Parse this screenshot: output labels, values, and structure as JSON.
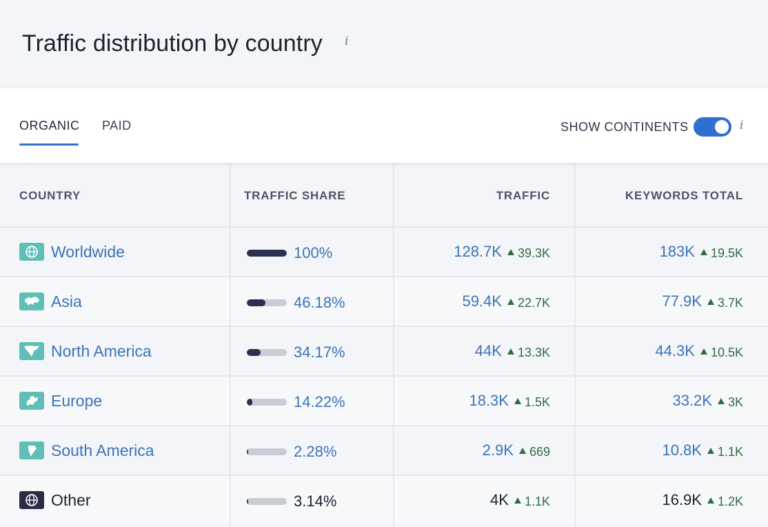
{
  "header": {
    "title": "Traffic distribution by country",
    "info": "i"
  },
  "tabs": {
    "items": [
      {
        "label": "ORGANIC",
        "active": true
      },
      {
        "label": "PAID",
        "active": false
      }
    ],
    "continents_label": "SHOW CONTINENTS",
    "continents_on": true,
    "continents_info": "i"
  },
  "table": {
    "headers": {
      "country": "COUNTRY",
      "share": "TRAFFIC SHARE",
      "traffic": "TRAFFIC",
      "keywords": "KEYWORDS TOTAL"
    },
    "rows": [
      {
        "name": "Worldwide",
        "icon": "globe-icon",
        "share": "100%",
        "share_fraction": 1.0,
        "traffic": "128.7K",
        "traffic_delta": "39.3K",
        "keywords": "183K",
        "keywords_delta": "19.5K",
        "link": true
      },
      {
        "name": "Asia",
        "icon": "asia-map-icon",
        "share": "46.18%",
        "share_fraction": 0.4618,
        "traffic": "59.4K",
        "traffic_delta": "22.7K",
        "keywords": "77.9K",
        "keywords_delta": "3.7K",
        "link": true
      },
      {
        "name": "North America",
        "icon": "north-america-map-icon",
        "share": "34.17%",
        "share_fraction": 0.3417,
        "traffic": "44K",
        "traffic_delta": "13.3K",
        "keywords": "44.3K",
        "keywords_delta": "10.5K",
        "link": true
      },
      {
        "name": "Europe",
        "icon": "europe-map-icon",
        "share": "14.22%",
        "share_fraction": 0.1422,
        "traffic": "18.3K",
        "traffic_delta": "1.5K",
        "keywords": "33.2K",
        "keywords_delta": "3K",
        "link": true
      },
      {
        "name": "South America",
        "icon": "south-america-map-icon",
        "share": "2.28%",
        "share_fraction": 0.0228,
        "traffic": "2.9K",
        "traffic_delta": "669",
        "keywords": "10.8K",
        "keywords_delta": "1.1K",
        "link": true
      },
      {
        "name": "Other",
        "icon": "globe-icon",
        "share": "3.14%",
        "share_fraction": 0.0314,
        "traffic": "4K",
        "traffic_delta": "1.1K",
        "keywords": "16.9K",
        "keywords_delta": "1.2K",
        "link": false
      }
    ]
  },
  "colors": {
    "accent": "#2f6fce",
    "link": "#3a74b8",
    "bar_fill": "#2a3150",
    "bar_track": "#c9ccd5",
    "delta_up": "#2f6b47",
    "flag_teal": "#5fbeb6",
    "flag_dark": "#272d45"
  }
}
